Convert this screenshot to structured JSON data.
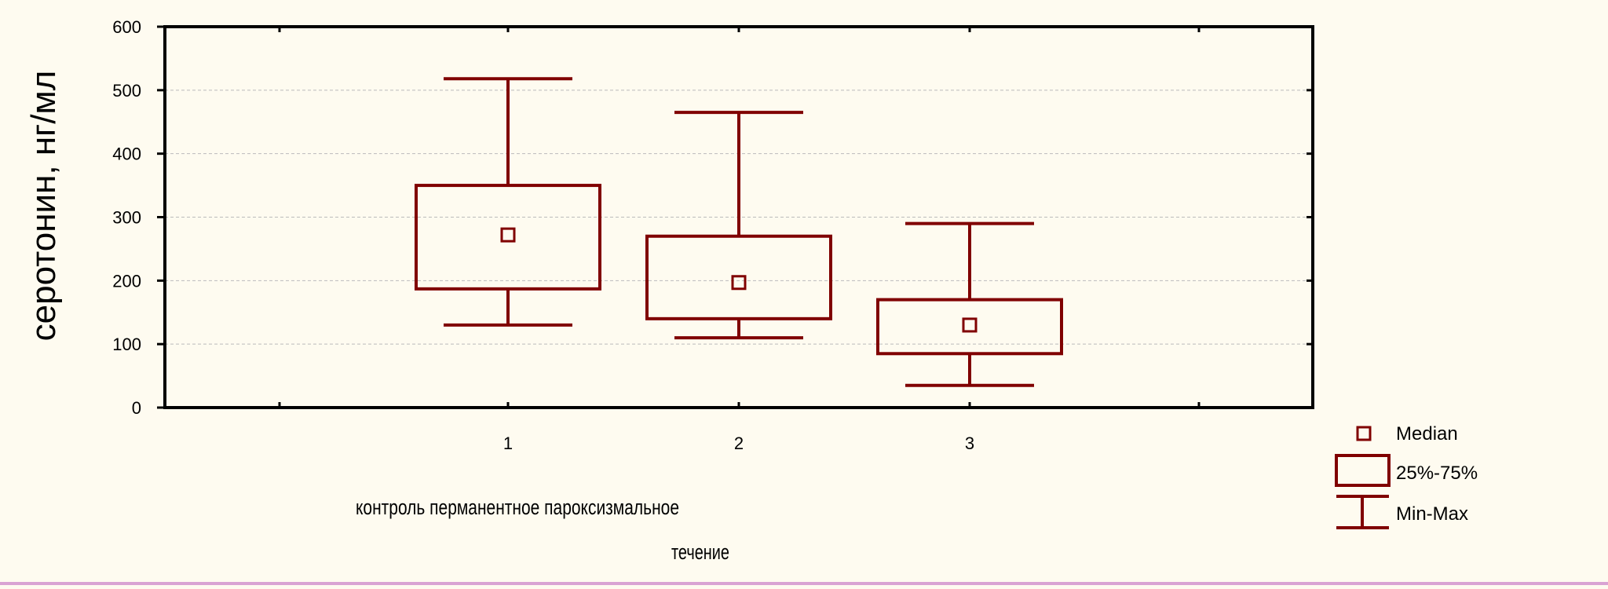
{
  "chart_data": {
    "type": "boxplot",
    "ylabel": "серотонин,  нг/мл",
    "xlabel": "течение",
    "category_caption": "контроль  перманентное  пароксизмальное",
    "categories": [
      "1",
      "2",
      "3"
    ],
    "ylim": [
      0,
      600
    ],
    "yticks": [
      0,
      100,
      200,
      300,
      400,
      500,
      600
    ],
    "grid": true,
    "color": "#800000",
    "boxes": [
      {
        "category": "1",
        "min": 130,
        "q1": 187,
        "median": 272,
        "q3": 350,
        "max": 518
      },
      {
        "category": "2",
        "min": 110,
        "q1": 140,
        "median": 197,
        "q3": 270,
        "max": 465
      },
      {
        "category": "3",
        "min": 35,
        "q1": 85,
        "median": 130,
        "q3": 170,
        "max": 290
      }
    ],
    "legend": {
      "placement": "bottom-right",
      "entries": [
        {
          "marker": "median",
          "label": "Median"
        },
        {
          "marker": "box",
          "label": "25%-75%"
        },
        {
          "marker": "whisker",
          "label": "Min-Max"
        }
      ]
    }
  }
}
